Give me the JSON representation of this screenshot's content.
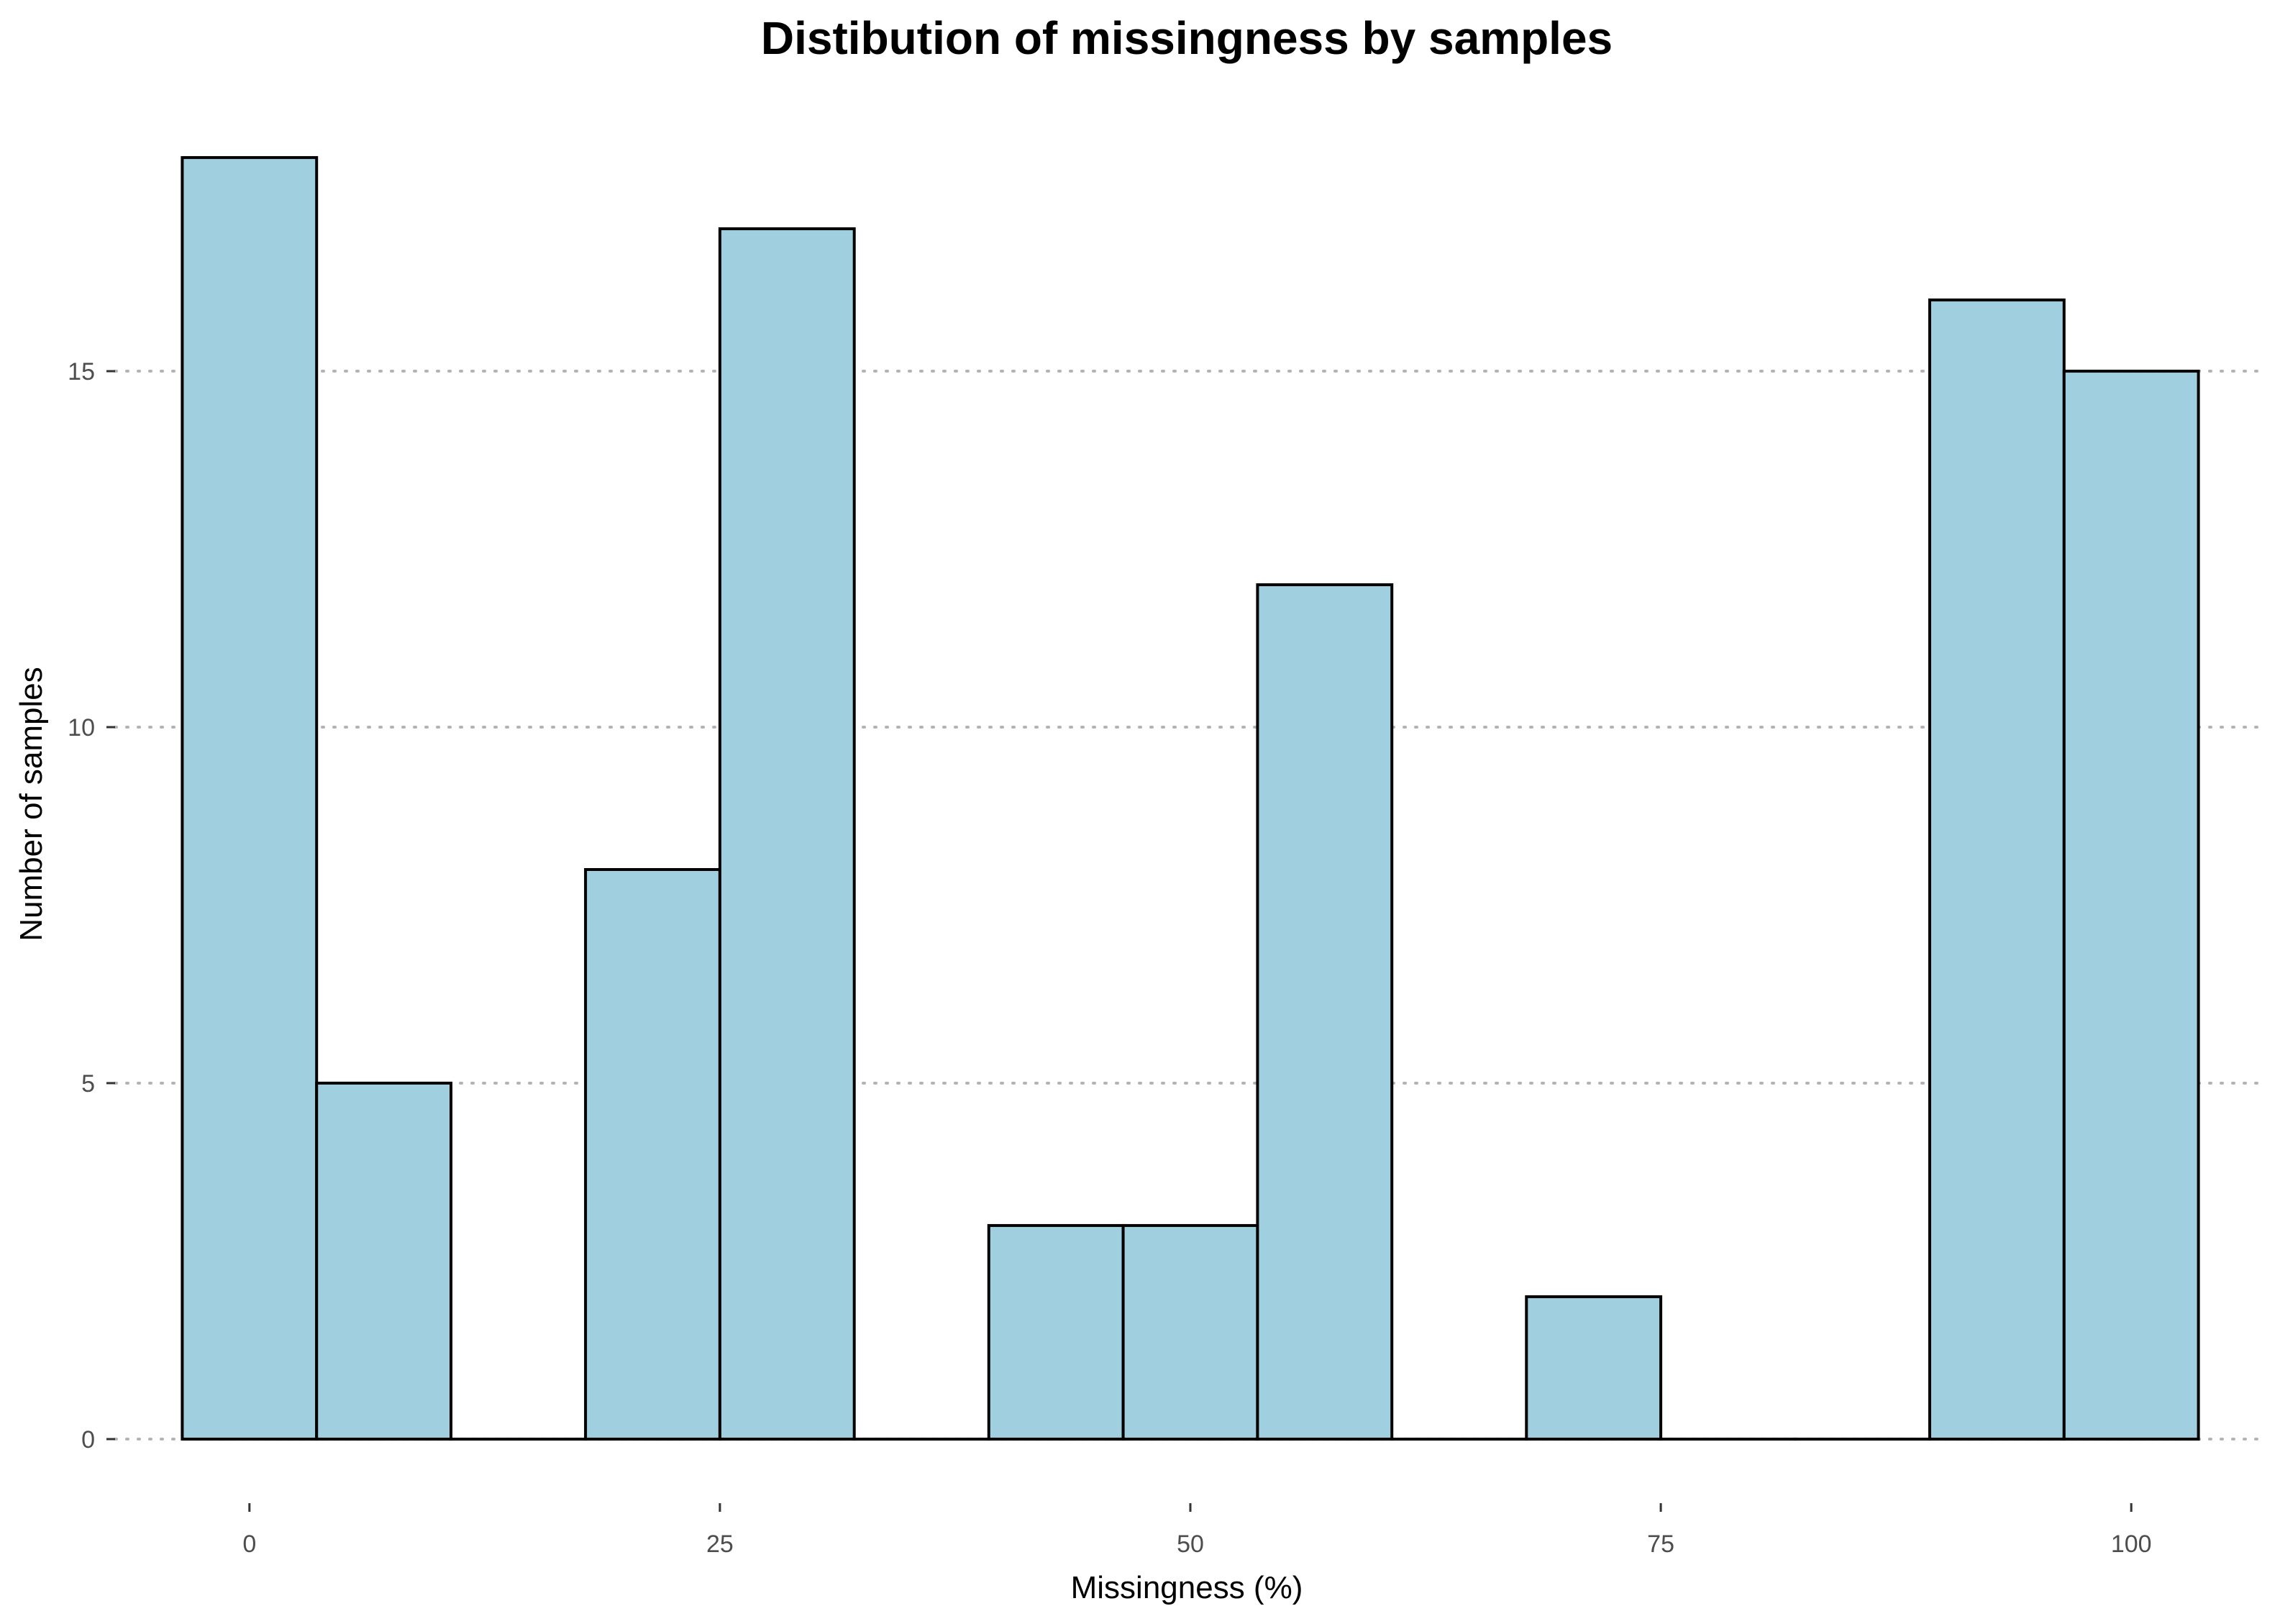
{
  "chart_data": {
    "type": "bar",
    "title": "Distibution of missingness by samples",
    "xlabel": "Missingness (%)",
    "ylabel": "Number of samples",
    "bin_width": 7.14,
    "bins": [
      {
        "center": 0.0,
        "count": 18
      },
      {
        "center": 7.14,
        "count": 5
      },
      {
        "center": 14.29,
        "count": 0
      },
      {
        "center": 21.43,
        "count": 8
      },
      {
        "center": 28.57,
        "count": 17
      },
      {
        "center": 35.71,
        "count": 0
      },
      {
        "center": 42.86,
        "count": 3
      },
      {
        "center": 50.0,
        "count": 3
      },
      {
        "center": 57.14,
        "count": 12
      },
      {
        "center": 64.29,
        "count": 0
      },
      {
        "center": 71.43,
        "count": 2
      },
      {
        "center": 78.57,
        "count": 0
      },
      {
        "center": 85.71,
        "count": 0
      },
      {
        "center": 92.86,
        "count": 16
      },
      {
        "center": 100.0,
        "count": 15
      }
    ],
    "xlim": [
      -7.14,
      107.14
    ],
    "ylim": [
      -0.9,
      18.9
    ],
    "x_ticks": [
      0,
      25,
      50,
      75,
      100
    ],
    "y_ticks": [
      0,
      5,
      10,
      15
    ],
    "grid": "horizontal, dotted",
    "legend": "none",
    "colors": {
      "bar_fill": "#a0cfe0",
      "bar_stroke": "#000000",
      "grid": "#b3b3b3",
      "tick_label": "#4d4d4d"
    }
  }
}
